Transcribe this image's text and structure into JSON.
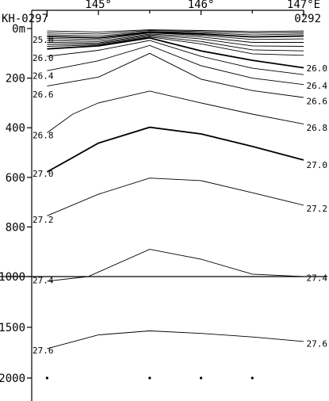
{
  "chart_data": {
    "type": "line",
    "title": "",
    "xlabel": "",
    "ylabel": "",
    "x_unit": "°E",
    "xlim": [
      144.35,
      147.0
    ],
    "x_ticks": [
      {
        "value": 145,
        "label": "145°"
      },
      {
        "value": 146,
        "label": "146°"
      },
      {
        "value": 147,
        "label": "147°E"
      }
    ],
    "stations": [
      {
        "name": "KH-0297",
        "x": 144.5
      },
      {
        "name": "0292",
        "x": 147.0
      }
    ],
    "sample_points": [
      {
        "x": 144.5,
        "depth": 2000
      },
      {
        "x": 145.5,
        "depth": 2000
      },
      {
        "x": 146.0,
        "depth": 2000
      },
      {
        "x": 146.5,
        "depth": 2000
      }
    ],
    "y_axis": {
      "upper": {
        "ylim": [
          0,
          1000
        ],
        "ticks": [
          {
            "value": 0,
            "label": "0m"
          },
          {
            "value": 200,
            "label": "200"
          },
          {
            "value": 400,
            "label": "400"
          },
          {
            "value": 600,
            "label": "600"
          },
          {
            "value": 800,
            "label": "800"
          },
          {
            "value": 1000,
            "label": "1000"
          }
        ]
      },
      "lower": {
        "ylim": [
          1000,
          2250
        ],
        "ticks": [
          {
            "value": 1000,
            "label": "1000"
          },
          {
            "value": 1500,
            "label": "1500"
          },
          {
            "value": 2000,
            "label": "2000"
          }
        ]
      }
    },
    "series": [
      {
        "name": "",
        "weight": "thin",
        "values": [
          {
            "x": 144.5,
            "y": 10
          },
          {
            "x": 145,
            "y": 14
          },
          {
            "x": 145.5,
            "y": 5
          },
          {
            "x": 146,
            "y": 8
          },
          {
            "x": 146.5,
            "y": 12
          },
          {
            "x": 147,
            "y": 10
          }
        ]
      },
      {
        "name": "",
        "weight": "thin",
        "values": [
          {
            "x": 144.5,
            "y": 18
          },
          {
            "x": 145,
            "y": 22
          },
          {
            "x": 145.5,
            "y": 8
          },
          {
            "x": 146,
            "y": 12
          },
          {
            "x": 146.5,
            "y": 18
          },
          {
            "x": 147,
            "y": 16
          }
        ]
      },
      {
        "name": "",
        "weight": "thin",
        "values": [
          {
            "x": 144.5,
            "y": 25
          },
          {
            "x": 145,
            "y": 30
          },
          {
            "x": 145.5,
            "y": 12
          },
          {
            "x": 146,
            "y": 17
          },
          {
            "x": 146.5,
            "y": 26
          },
          {
            "x": 147,
            "y": 22
          }
        ]
      },
      {
        "name": "25.0",
        "weight": "bold",
        "values": [
          {
            "x": 144.5,
            "y": 32
          },
          {
            "x": 145,
            "y": 38
          },
          {
            "x": 145.5,
            "y": 15
          },
          {
            "x": 146,
            "y": 22
          },
          {
            "x": 146.5,
            "y": 34
          },
          {
            "x": 147,
            "y": 30
          }
        ]
      },
      {
        "name": "",
        "weight": "thin",
        "values": [
          {
            "x": 144.5,
            "y": 40
          },
          {
            "x": 145,
            "y": 45
          },
          {
            "x": 145.5,
            "y": 18
          },
          {
            "x": 146,
            "y": 27
          },
          {
            "x": 146.5,
            "y": 44
          },
          {
            "x": 147,
            "y": 42
          }
        ]
      },
      {
        "name": "",
        "weight": "thin",
        "values": [
          {
            "x": 144.5,
            "y": 48
          },
          {
            "x": 145,
            "y": 52
          },
          {
            "x": 145.5,
            "y": 22
          },
          {
            "x": 146,
            "y": 34
          },
          {
            "x": 146.5,
            "y": 56
          },
          {
            "x": 147,
            "y": 56
          }
        ]
      },
      {
        "name": "",
        "weight": "thin",
        "values": [
          {
            "x": 144.5,
            "y": 56
          },
          {
            "x": 145,
            "y": 58
          },
          {
            "x": 145.5,
            "y": 26
          },
          {
            "x": 146,
            "y": 42
          },
          {
            "x": 146.5,
            "y": 70
          },
          {
            "x": 147,
            "y": 72
          }
        ]
      },
      {
        "name": "",
        "weight": "thin",
        "values": [
          {
            "x": 144.5,
            "y": 64
          },
          {
            "x": 145,
            "y": 62
          },
          {
            "x": 145.5,
            "y": 30
          },
          {
            "x": 146,
            "y": 52
          },
          {
            "x": 146.5,
            "y": 86
          },
          {
            "x": 147,
            "y": 90
          }
        ]
      },
      {
        "name": "",
        "weight": "thin",
        "values": [
          {
            "x": 144.5,
            "y": 72
          },
          {
            "x": 145,
            "y": 66
          },
          {
            "x": 145.5,
            "y": 34
          },
          {
            "x": 146,
            "y": 62
          },
          {
            "x": 146.5,
            "y": 102
          },
          {
            "x": 147,
            "y": 108
          }
        ]
      },
      {
        "name": "26.0",
        "weight": "bold",
        "values": [
          {
            "x": 144.5,
            "y": 82
          },
          {
            "x": 145,
            "y": 70
          },
          {
            "x": 145.5,
            "y": 38
          },
          {
            "x": 146,
            "y": 90
          },
          {
            "x": 146.5,
            "y": 128
          },
          {
            "x": 147,
            "y": 158
          }
        ]
      },
      {
        "name": "",
        "weight": "thin",
        "values": [
          {
            "x": 144.5,
            "y": 112
          },
          {
            "x": 145,
            "y": 88
          },
          {
            "x": 145.5,
            "y": 48
          },
          {
            "x": 146,
            "y": 112
          },
          {
            "x": 146.5,
            "y": 160
          },
          {
            "x": 147,
            "y": 186
          }
        ]
      },
      {
        "name": "26.4",
        "weight": "thin",
        "values": [
          {
            "x": 144.5,
            "y": 170
          },
          {
            "x": 145,
            "y": 130
          },
          {
            "x": 145.5,
            "y": 68
          },
          {
            "x": 146,
            "y": 150
          },
          {
            "x": 146.5,
            "y": 200
          },
          {
            "x": 147,
            "y": 226
          }
        ]
      },
      {
        "name": "26.6",
        "weight": "thin",
        "values": [
          {
            "x": 144.5,
            "y": 232
          },
          {
            "x": 145,
            "y": 196
          },
          {
            "x": 145.5,
            "y": 100
          },
          {
            "x": 146,
            "y": 204
          },
          {
            "x": 146.5,
            "y": 250
          },
          {
            "x": 147,
            "y": 278
          }
        ]
      },
      {
        "name": "26.8",
        "weight": "thin",
        "values": [
          {
            "x": 144.5,
            "y": 420
          },
          {
            "x": 144.75,
            "y": 345
          },
          {
            "x": 145,
            "y": 300
          },
          {
            "x": 145.5,
            "y": 252
          },
          {
            "x": 146,
            "y": 300
          },
          {
            "x": 146.5,
            "y": 345
          },
          {
            "x": 147,
            "y": 385
          }
        ]
      },
      {
        "name": "27.0",
        "weight": "bold",
        "values": [
          {
            "x": 144.5,
            "y": 578
          },
          {
            "x": 144.75,
            "y": 520
          },
          {
            "x": 145,
            "y": 462
          },
          {
            "x": 145.5,
            "y": 398
          },
          {
            "x": 146,
            "y": 425
          },
          {
            "x": 146.5,
            "y": 475
          },
          {
            "x": 147,
            "y": 530
          }
        ]
      },
      {
        "name": "27.2",
        "weight": "thin",
        "values": [
          {
            "x": 144.5,
            "y": 755
          },
          {
            "x": 145,
            "y": 668
          },
          {
            "x": 145.5,
            "y": 603
          },
          {
            "x": 146,
            "y": 613
          },
          {
            "x": 146.5,
            "y": 662
          },
          {
            "x": 147,
            "y": 712
          }
        ]
      },
      {
        "name": "27.4",
        "weight": "thin",
        "values": [
          {
            "x": 144.5,
            "y": 1045
          },
          {
            "x": 144.9,
            "y": 1000
          },
          {
            "x": 145.5,
            "y": 890
          },
          {
            "x": 146,
            "y": 930
          },
          {
            "x": 146.5,
            "y": 990
          },
          {
            "x": 147,
            "y": 1000
          }
        ]
      },
      {
        "name": "27.6",
        "weight": "thin",
        "values": [
          {
            "x": 144.5,
            "y": 1710
          },
          {
            "x": 145,
            "y": 1575
          },
          {
            "x": 145.5,
            "y": 1535
          },
          {
            "x": 146,
            "y": 1560
          },
          {
            "x": 146.5,
            "y": 1595
          },
          {
            "x": 147,
            "y": 1640
          }
        ]
      }
    ],
    "left_labels": [
      {
        "text": "25.0",
        "depth": 45
      },
      {
        "text": "26.0",
        "depth": 118
      },
      {
        "text": "26.4",
        "depth": 190
      },
      {
        "text": "26.6",
        "depth": 265
      },
      {
        "text": "26.8",
        "depth": 430
      },
      {
        "text": "27.0",
        "depth": 585
      },
      {
        "text": "27.2",
        "depth": 770
      },
      {
        "text": "27.4",
        "depth": 1035
      },
      {
        "text": "27.6",
        "depth": 1725
      }
    ],
    "right_labels": [
      {
        "text": "26.0",
        "depth": 160
      },
      {
        "text": "26.4",
        "depth": 230
      },
      {
        "text": "26.6",
        "depth": 292
      },
      {
        "text": "26.8",
        "depth": 400
      },
      {
        "text": "27.0",
        "depth": 550
      },
      {
        "text": "27.2",
        "depth": 725
      },
      {
        "text": "27.4",
        "depth": 1010
      },
      {
        "text": "27.6",
        "depth": 1660
      }
    ]
  }
}
